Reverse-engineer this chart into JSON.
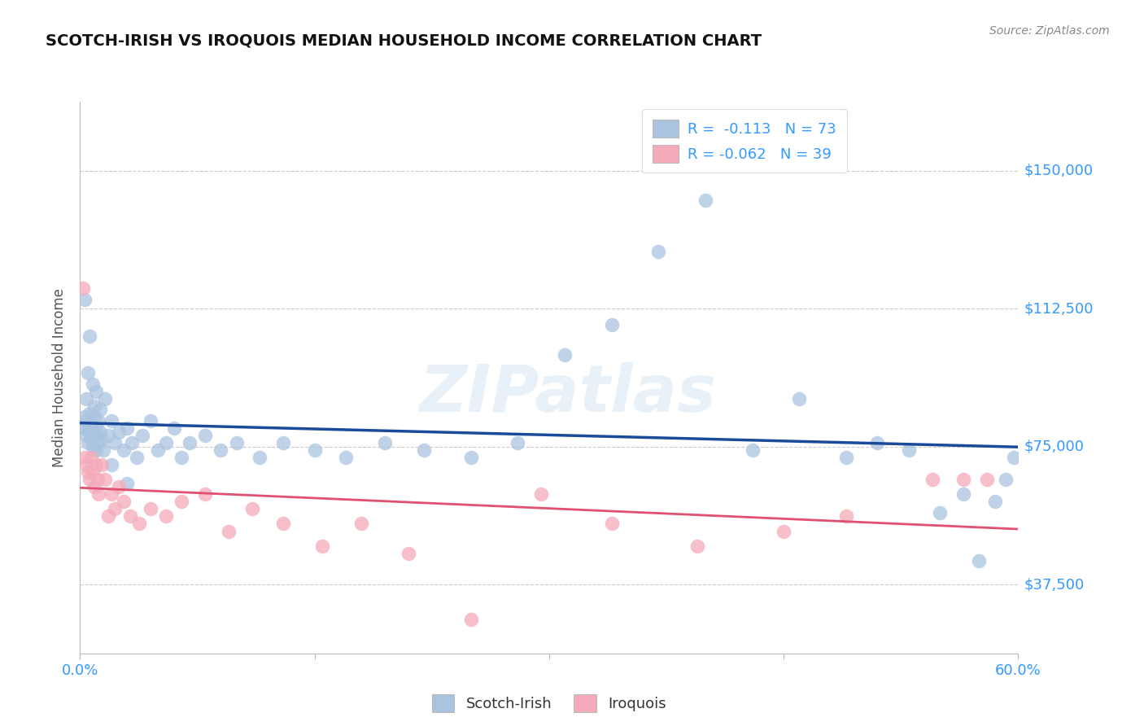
{
  "title": "SCOTCH-IRISH VS IROQUOIS MEDIAN HOUSEHOLD INCOME CORRELATION CHART",
  "source": "Source: ZipAtlas.com",
  "ylabel": "Median Household Income",
  "xlim": [
    0.0,
    0.6
  ],
  "ylim": [
    18750,
    168750
  ],
  "yticks": [
    37500,
    75000,
    112500,
    150000
  ],
  "ytick_labels": [
    "$37,500",
    "$75,000",
    "$112,500",
    "$150,000"
  ],
  "xticks": [
    0.0,
    0.15,
    0.3,
    0.45,
    0.6
  ],
  "xtick_labels": [
    "0.0%",
    "",
    "",
    "",
    "60.0%"
  ],
  "background_color": "#ffffff",
  "grid_color": "#cccccc",
  "scotch_irish_color": "#aac4e0",
  "iroquois_color": "#f4aab8",
  "scotch_irish_line_color": "#1a4a9a",
  "iroquois_line_color": "#e05070",
  "legend_scotch_r": "-0.113",
  "legend_scotch_n": "73",
  "legend_iroquois_r": "-0.062",
  "legend_iroquois_n": "39",
  "watermark": "ZIPatlas",
  "scotch_irish_x": [
    0.003,
    0.003,
    0.004,
    0.004,
    0.005,
    0.005,
    0.006,
    0.006,
    0.007,
    0.007,
    0.008,
    0.008,
    0.009,
    0.009,
    0.01,
    0.01,
    0.011,
    0.012,
    0.013,
    0.014,
    0.015,
    0.016,
    0.018,
    0.02,
    0.022,
    0.025,
    0.028,
    0.03,
    0.033,
    0.036,
    0.04,
    0.045,
    0.05,
    0.055,
    0.06,
    0.065,
    0.07,
    0.08,
    0.09,
    0.1,
    0.115,
    0.13,
    0.15,
    0.17,
    0.195,
    0.22,
    0.25,
    0.28,
    0.31,
    0.34,
    0.37,
    0.4,
    0.43,
    0.46,
    0.49,
    0.51,
    0.53,
    0.55,
    0.565,
    0.575,
    0.585,
    0.592,
    0.597,
    0.003,
    0.004,
    0.005,
    0.006,
    0.008,
    0.009,
    0.01,
    0.013,
    0.02,
    0.03
  ],
  "scotch_irish_y": [
    80000,
    83000,
    78000,
    82000,
    76000,
    80000,
    79000,
    84000,
    77000,
    81000,
    75000,
    79000,
    83000,
    78000,
    74000,
    80000,
    76000,
    82000,
    79000,
    77000,
    74000,
    88000,
    78000,
    82000,
    76000,
    79000,
    74000,
    80000,
    76000,
    72000,
    78000,
    82000,
    74000,
    76000,
    80000,
    72000,
    76000,
    78000,
    74000,
    76000,
    72000,
    76000,
    74000,
    72000,
    76000,
    74000,
    72000,
    76000,
    100000,
    108000,
    128000,
    142000,
    74000,
    88000,
    72000,
    76000,
    74000,
    57000,
    62000,
    44000,
    60000,
    66000,
    72000,
    115000,
    88000,
    95000,
    105000,
    92000,
    86000,
    90000,
    85000,
    70000,
    65000
  ],
  "iroquois_x": [
    0.002,
    0.003,
    0.004,
    0.005,
    0.006,
    0.007,
    0.008,
    0.009,
    0.01,
    0.011,
    0.012,
    0.014,
    0.016,
    0.018,
    0.02,
    0.022,
    0.025,
    0.028,
    0.032,
    0.038,
    0.045,
    0.055,
    0.065,
    0.08,
    0.095,
    0.11,
    0.13,
    0.155,
    0.18,
    0.21,
    0.25,
    0.295,
    0.34,
    0.395,
    0.45,
    0.49,
    0.545,
    0.565,
    0.58
  ],
  "iroquois_y": [
    118000,
    72000,
    70000,
    68000,
    66000,
    72000,
    68000,
    64000,
    70000,
    66000,
    62000,
    70000,
    66000,
    56000,
    62000,
    58000,
    64000,
    60000,
    56000,
    54000,
    58000,
    56000,
    60000,
    62000,
    52000,
    58000,
    54000,
    48000,
    54000,
    46000,
    28000,
    62000,
    54000,
    48000,
    52000,
    56000,
    66000,
    66000,
    66000
  ]
}
